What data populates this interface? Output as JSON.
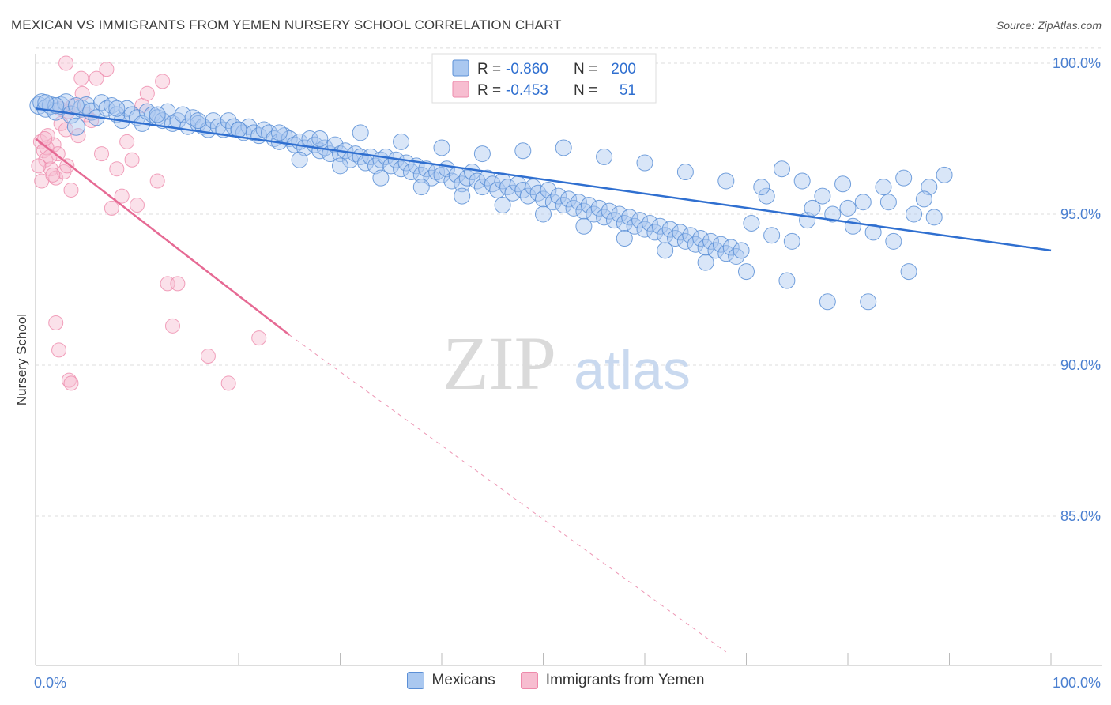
{
  "title": "MEXICAN VS IMMIGRANTS FROM YEMEN NURSERY SCHOOL CORRELATION CHART",
  "source": "Source: ZipAtlas.com",
  "watermark": {
    "zip": "ZIP",
    "atlas": "atlas"
  },
  "legend_stats": [
    {
      "r_label": "R =",
      "r_value": "-0.860",
      "n_label": "N =",
      "n_value": "200"
    },
    {
      "r_label": "R =",
      "r_value": "-0.453",
      "n_label": "N =",
      "n_value": "51"
    }
  ],
  "colors": {
    "mexicans_fill": "#aac8f0",
    "mexicans_stroke": "#5b8fd6",
    "mexicans_line": "#2f6fd0",
    "yemen_fill": "#f7bdd0",
    "yemen_stroke": "#ee8aab",
    "yemen_line": "#e66a94",
    "tick_text": "#4a7fd0",
    "grid": "#dcdcdc"
  },
  "chart_data": {
    "type": "scatter",
    "title": "MEXICAN VS IMMIGRANTS FROM YEMEN NURSERY SCHOOL CORRELATION CHART",
    "xlabel": "",
    "ylabel": "Nursery School",
    "xlim": [
      0,
      100
    ],
    "ylim": [
      80.5,
      100.5
    ],
    "x_tick_labels": [
      "0.0%",
      "100.0%"
    ],
    "y_ticks": [
      85,
      90,
      95,
      100
    ],
    "y_tick_labels": [
      "85.0%",
      "90.0%",
      "95.0%",
      "100.0%"
    ],
    "grid": true,
    "legend_position": "top-center",
    "series": [
      {
        "name": "Mexicans",
        "r": -0.86,
        "n": 200,
        "trend": {
          "x": [
            0,
            100
          ],
          "y": [
            98.5,
            93.8
          ],
          "dashed_extension": false
        },
        "points": [
          [
            0.3,
            98.6
          ],
          [
            0.6,
            98.7
          ],
          [
            1.0,
            98.5
          ],
          [
            1.5,
            98.6
          ],
          [
            2.0,
            98.4
          ],
          [
            2.5,
            98.6
          ],
          [
            3.0,
            98.7
          ],
          [
            3.5,
            98.3
          ],
          [
            4.0,
            97.9
          ],
          [
            4.5,
            98.5
          ],
          [
            5.0,
            98.6
          ],
          [
            5.5,
            98.4
          ],
          [
            6.0,
            98.2
          ],
          [
            6.5,
            98.7
          ],
          [
            7.0,
            98.5
          ],
          [
            7.5,
            98.6
          ],
          [
            8.0,
            98.3
          ],
          [
            8.5,
            98.1
          ],
          [
            9.0,
            98.5
          ],
          [
            9.5,
            98.3
          ],
          [
            10.0,
            98.2
          ],
          [
            10.5,
            98.0
          ],
          [
            11.0,
            98.4
          ],
          [
            11.5,
            98.3
          ],
          [
            12.0,
            98.2
          ],
          [
            12.5,
            98.1
          ],
          [
            13.0,
            98.4
          ],
          [
            13.5,
            98.0
          ],
          [
            14.0,
            98.1
          ],
          [
            14.5,
            98.3
          ],
          [
            15.0,
            97.9
          ],
          [
            15.5,
            98.2
          ],
          [
            16.0,
            98.0
          ],
          [
            16.5,
            97.9
          ],
          [
            17.0,
            97.8
          ],
          [
            17.5,
            98.1
          ],
          [
            18.0,
            97.9
          ],
          [
            18.5,
            97.8
          ],
          [
            19.0,
            98.1
          ],
          [
            19.5,
            97.9
          ],
          [
            20.0,
            97.8
          ],
          [
            20.5,
            97.7
          ],
          [
            21.0,
            97.9
          ],
          [
            21.5,
            97.7
          ],
          [
            22.0,
            97.6
          ],
          [
            22.5,
            97.8
          ],
          [
            23.0,
            97.7
          ],
          [
            23.5,
            97.5
          ],
          [
            24.0,
            97.4
          ],
          [
            24.5,
            97.6
          ],
          [
            25.0,
            97.5
          ],
          [
            25.5,
            97.3
          ],
          [
            26.0,
            97.4
          ],
          [
            26.5,
            97.2
          ],
          [
            27.0,
            97.5
          ],
          [
            27.5,
            97.3
          ],
          [
            28.0,
            97.1
          ],
          [
            28.5,
            97.2
          ],
          [
            29.0,
            97.0
          ],
          [
            29.5,
            97.3
          ],
          [
            30.0,
            97.0
          ],
          [
            30.5,
            97.1
          ],
          [
            31.0,
            96.8
          ],
          [
            31.5,
            97.0
          ],
          [
            32.0,
            96.9
          ],
          [
            32.5,
            96.7
          ],
          [
            33.0,
            96.9
          ],
          [
            33.5,
            96.6
          ],
          [
            34.0,
            96.8
          ],
          [
            34.5,
            96.9
          ],
          [
            35.0,
            96.6
          ],
          [
            35.5,
            96.8
          ],
          [
            36.0,
            96.5
          ],
          [
            36.5,
            96.7
          ],
          [
            37.0,
            96.4
          ],
          [
            37.5,
            96.6
          ],
          [
            38.0,
            96.3
          ],
          [
            38.5,
            96.5
          ],
          [
            39.0,
            96.2
          ],
          [
            39.5,
            96.4
          ],
          [
            40.0,
            96.3
          ],
          [
            40.5,
            96.5
          ],
          [
            41.0,
            96.1
          ],
          [
            41.5,
            96.3
          ],
          [
            42.0,
            96.0
          ],
          [
            42.5,
            96.2
          ],
          [
            43.0,
            96.4
          ],
          [
            43.5,
            96.1
          ],
          [
            44.0,
            95.9
          ],
          [
            44.5,
            96.2
          ],
          [
            45.0,
            96.0
          ],
          [
            45.5,
            95.8
          ],
          [
            46.0,
            96.1
          ],
          [
            46.5,
            95.9
          ],
          [
            47.0,
            95.7
          ],
          [
            47.5,
            96.0
          ],
          [
            48.0,
            95.8
          ],
          [
            48.5,
            95.6
          ],
          [
            49.0,
            95.9
          ],
          [
            49.5,
            95.7
          ],
          [
            50.0,
            95.5
          ],
          [
            50.5,
            95.8
          ],
          [
            51.0,
            95.4
          ],
          [
            51.5,
            95.6
          ],
          [
            52.0,
            95.3
          ],
          [
            52.5,
            95.5
          ],
          [
            53.0,
            95.2
          ],
          [
            53.5,
            95.4
          ],
          [
            54.0,
            95.1
          ],
          [
            54.5,
            95.3
          ],
          [
            55.0,
            95.0
          ],
          [
            55.5,
            95.2
          ],
          [
            56.0,
            94.9
          ],
          [
            56.5,
            95.1
          ],
          [
            57.0,
            94.8
          ],
          [
            57.5,
            95.0
          ],
          [
            58.0,
            94.7
          ],
          [
            58.5,
            94.9
          ],
          [
            59.0,
            94.6
          ],
          [
            59.5,
            94.8
          ],
          [
            60.0,
            94.5
          ],
          [
            60.5,
            94.7
          ],
          [
            61.0,
            94.4
          ],
          [
            61.5,
            94.6
          ],
          [
            62.0,
            94.3
          ],
          [
            62.5,
            94.5
          ],
          [
            63.0,
            94.2
          ],
          [
            63.5,
            94.4
          ],
          [
            64.0,
            94.1
          ],
          [
            64.5,
            94.3
          ],
          [
            65.0,
            94.0
          ],
          [
            65.5,
            94.2
          ],
          [
            66.0,
            93.9
          ],
          [
            66.5,
            94.1
          ],
          [
            67.0,
            93.8
          ],
          [
            67.5,
            94.0
          ],
          [
            68.0,
            93.7
          ],
          [
            68.5,
            93.9
          ],
          [
            69.0,
            93.6
          ],
          [
            69.5,
            93.8
          ],
          [
            26.0,
            96.8
          ],
          [
            30.0,
            96.6
          ],
          [
            34.0,
            96.2
          ],
          [
            38.0,
            95.9
          ],
          [
            42.0,
            95.6
          ],
          [
            46.0,
            95.3
          ],
          [
            50.0,
            95.0
          ],
          [
            54.0,
            94.6
          ],
          [
            58.0,
            94.2
          ],
          [
            62.0,
            93.8
          ],
          [
            66.0,
            93.4
          ],
          [
            70.0,
            93.1
          ],
          [
            74.0,
            92.8
          ],
          [
            78.0,
            92.1
          ],
          [
            82.0,
            92.1
          ],
          [
            86.0,
            93.1
          ],
          [
            76.0,
            94.8
          ],
          [
            80.0,
            95.2
          ],
          [
            84.0,
            95.4
          ],
          [
            88.0,
            95.9
          ],
          [
            72.0,
            95.6
          ],
          [
            68.0,
            96.1
          ],
          [
            64.0,
            96.4
          ],
          [
            60.0,
            96.7
          ],
          [
            56.0,
            96.9
          ],
          [
            52.0,
            97.2
          ],
          [
            48.0,
            97.1
          ],
          [
            44.0,
            97.0
          ],
          [
            40.0,
            97.2
          ],
          [
            36.0,
            97.4
          ],
          [
            32.0,
            97.7
          ],
          [
            28.0,
            97.5
          ],
          [
            24.0,
            97.7
          ],
          [
            20.0,
            97.8
          ],
          [
            16.0,
            98.1
          ],
          [
            12.0,
            98.3
          ],
          [
            8.0,
            98.5
          ],
          [
            4.0,
            98.6
          ],
          [
            2.0,
            98.6
          ],
          [
            1.0,
            98.7
          ],
          [
            70.5,
            94.7
          ],
          [
            72.5,
            94.3
          ],
          [
            74.5,
            94.1
          ],
          [
            76.5,
            95.2
          ],
          [
            78.5,
            95.0
          ],
          [
            80.5,
            94.6
          ],
          [
            82.5,
            94.4
          ],
          [
            84.5,
            94.1
          ],
          [
            86.5,
            95.0
          ],
          [
            88.5,
            94.9
          ],
          [
            71.5,
            95.9
          ],
          [
            73.5,
            96.5
          ],
          [
            75.5,
            96.1
          ],
          [
            77.5,
            95.6
          ],
          [
            79.5,
            96.0
          ],
          [
            81.5,
            95.4
          ],
          [
            83.5,
            95.9
          ],
          [
            85.5,
            96.2
          ],
          [
            87.5,
            95.5
          ],
          [
            89.5,
            96.3
          ]
        ]
      },
      {
        "name": "Immigrants from Yemen",
        "r": -0.453,
        "n": 51,
        "trend": {
          "x": [
            0,
            25
          ],
          "y": [
            97.5,
            91.0
          ],
          "dashed_extension_to": [
            68.0,
            80.5
          ]
        },
        "points": [
          [
            0.5,
            97.4
          ],
          [
            0.8,
            97.1
          ],
          [
            1.0,
            96.8
          ],
          [
            1.2,
            97.6
          ],
          [
            1.5,
            96.5
          ],
          [
            1.8,
            97.3
          ],
          [
            2.0,
            96.2
          ],
          [
            2.2,
            97.0
          ],
          [
            2.5,
            98.0
          ],
          [
            2.8,
            96.4
          ],
          [
            3.0,
            97.8
          ],
          [
            3.2,
            98.4
          ],
          [
            3.5,
            95.8
          ],
          [
            0.3,
            96.6
          ],
          [
            0.6,
            96.1
          ],
          [
            1.1,
            97.2
          ],
          [
            1.4,
            96.9
          ],
          [
            0.9,
            97.5
          ],
          [
            1.7,
            96.3
          ],
          [
            2.4,
            98.5
          ],
          [
            3.1,
            96.6
          ],
          [
            3.7,
            98.6
          ],
          [
            4.2,
            97.6
          ],
          [
            4.6,
            99.0
          ],
          [
            5.0,
            98.3
          ],
          [
            5.5,
            98.1
          ],
          [
            6.0,
            99.5
          ],
          [
            6.5,
            97.0
          ],
          [
            7.0,
            99.8
          ],
          [
            7.5,
            95.2
          ],
          [
            8.0,
            96.5
          ],
          [
            8.5,
            95.6
          ],
          [
            9.0,
            97.4
          ],
          [
            9.5,
            96.8
          ],
          [
            10.0,
            95.3
          ],
          [
            10.5,
            98.6
          ],
          [
            11.0,
            99.0
          ],
          [
            12.0,
            96.1
          ],
          [
            12.5,
            99.4
          ],
          [
            13.0,
            92.7
          ],
          [
            13.5,
            91.3
          ],
          [
            14.0,
            92.7
          ],
          [
            17.0,
            90.3
          ],
          [
            19.0,
            89.4
          ],
          [
            22.0,
            90.9
          ],
          [
            2.0,
            91.4
          ],
          [
            2.3,
            90.5
          ],
          [
            3.3,
            89.5
          ],
          [
            3.5,
            89.4
          ],
          [
            4.5,
            99.5
          ],
          [
            3.0,
            100.0
          ]
        ]
      }
    ]
  },
  "legend": [
    {
      "label": "Mexicans"
    },
    {
      "label": "Immigrants from Yemen"
    }
  ]
}
